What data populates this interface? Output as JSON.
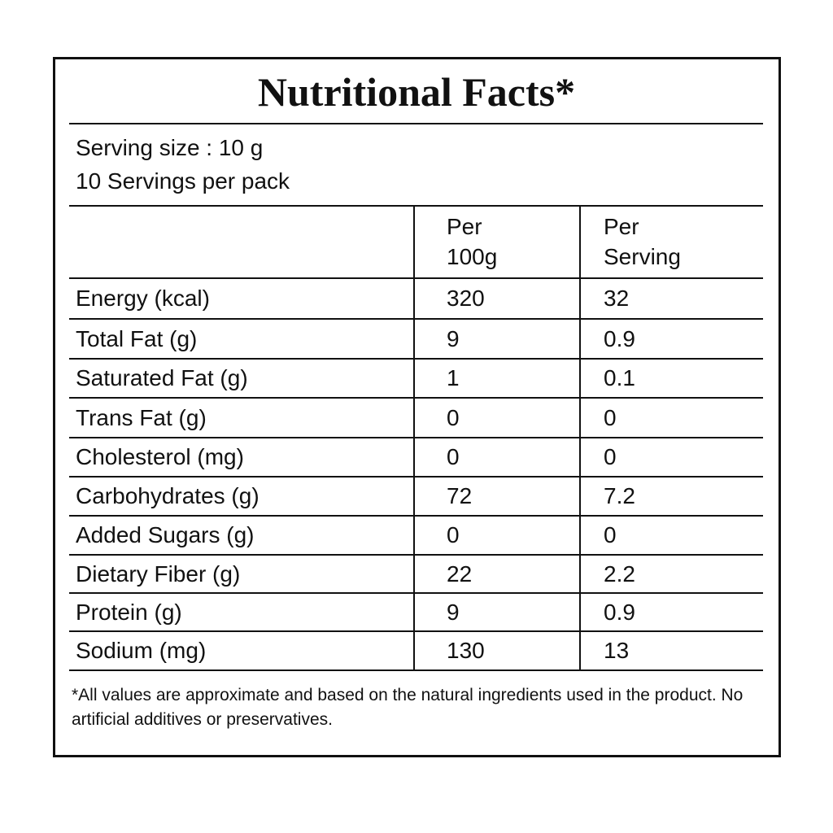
{
  "title": "Nutritional Facts*",
  "serving": {
    "size": "Serving size : 10 g",
    "per_pack": "10 Servings per pack"
  },
  "table": {
    "header": {
      "per_100g": "Per\n100g",
      "per_serving": "Per\nServing"
    },
    "rows": [
      [
        "Energy (kcal)",
        320,
        32
      ],
      [
        "Total Fat (g)",
        9,
        0.9
      ],
      [
        "Saturated Fat (g)",
        1,
        0.1
      ],
      [
        "Trans Fat (g)",
        0,
        0
      ],
      [
        "Cholesterol (mg)",
        0,
        0
      ],
      [
        "Carbohydrates (g)",
        72,
        7.2
      ],
      [
        "Added Sugars (g)",
        0,
        0
      ],
      [
        "Dietary Fiber (g)",
        22,
        2.2
      ],
      [
        "Protein (g)",
        9,
        0.9
      ],
      [
        "Sodium (mg)",
        130,
        13
      ]
    ]
  },
  "footnote": "*All values are approximate and based on the natural ingredients used in the product. No artificial additives or preservatives."
}
